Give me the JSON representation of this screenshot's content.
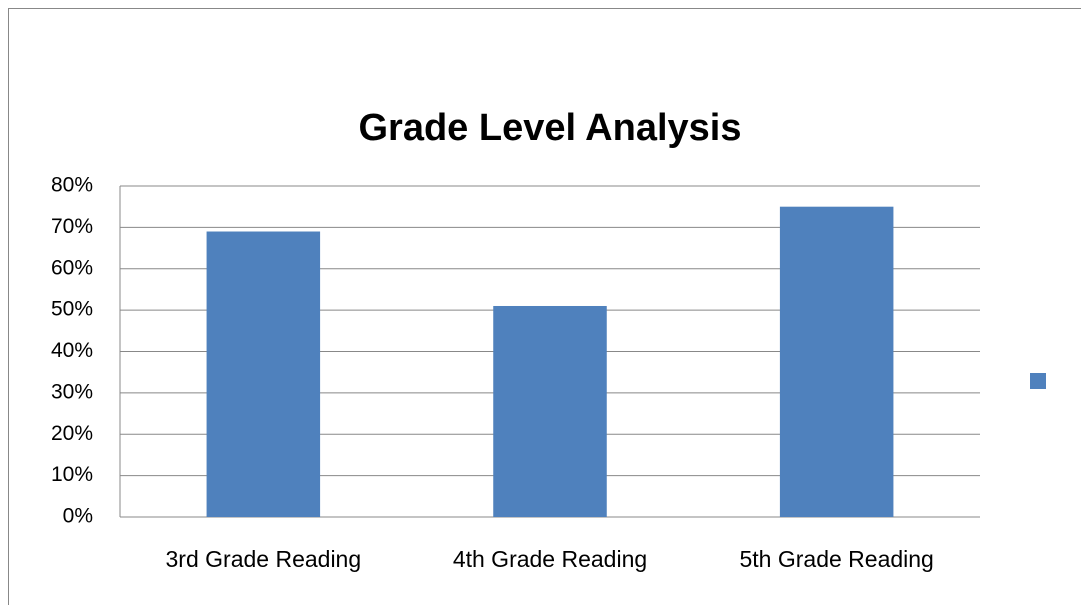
{
  "chart_data": {
    "type": "bar",
    "title": "Grade Level Analysis",
    "categories": [
      "3rd Grade Reading",
      "4th Grade Reading",
      "5th Grade Reading"
    ],
    "values": [
      69,
      51,
      75
    ],
    "color": "#4f81bd",
    "ylim": [
      0,
      80
    ],
    "yticks": [
      {
        "value": 0,
        "label": "0%"
      },
      {
        "value": 10,
        "label": "10%"
      },
      {
        "value": 20,
        "label": "20%"
      },
      {
        "value": 30,
        "label": "30%"
      },
      {
        "value": 40,
        "label": "40%"
      },
      {
        "value": 50,
        "label": "50%"
      },
      {
        "value": 60,
        "label": "60%"
      },
      {
        "value": 70,
        "label": "70%"
      },
      {
        "value": 80,
        "label": "80%"
      }
    ],
    "grid": true
  }
}
